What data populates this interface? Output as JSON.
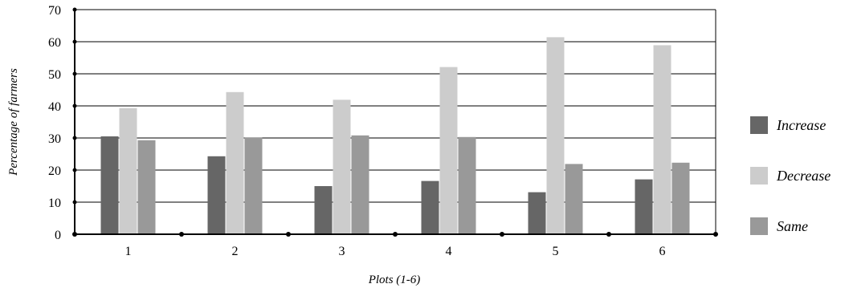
{
  "chart_data": {
    "type": "bar",
    "categories": [
      "1",
      "2",
      "3",
      "4",
      "5",
      "6"
    ],
    "series": [
      {
        "name": "Increase",
        "color": "#666666",
        "values": [
          30.5,
          24.3,
          15.0,
          16.6,
          13.1,
          17.1
        ]
      },
      {
        "name": "Decrease",
        "color": "#cccccc",
        "values": [
          39.3,
          44.3,
          41.9,
          52.1,
          61.4,
          58.9
        ]
      },
      {
        "name": "Same",
        "color": "#999999",
        "values": [
          29.3,
          30.2,
          30.8,
          30.3,
          21.9,
          22.3
        ]
      }
    ],
    "yticks": [
      "0",
      "10",
      "20",
      "30",
      "40",
      "50",
      "60",
      "70"
    ],
    "ylim": [
      0,
      70
    ],
    "xlabel": "Plots (1-6)",
    "ylabel": "Percentage of farmers",
    "grid": true,
    "legend_position": "right"
  }
}
